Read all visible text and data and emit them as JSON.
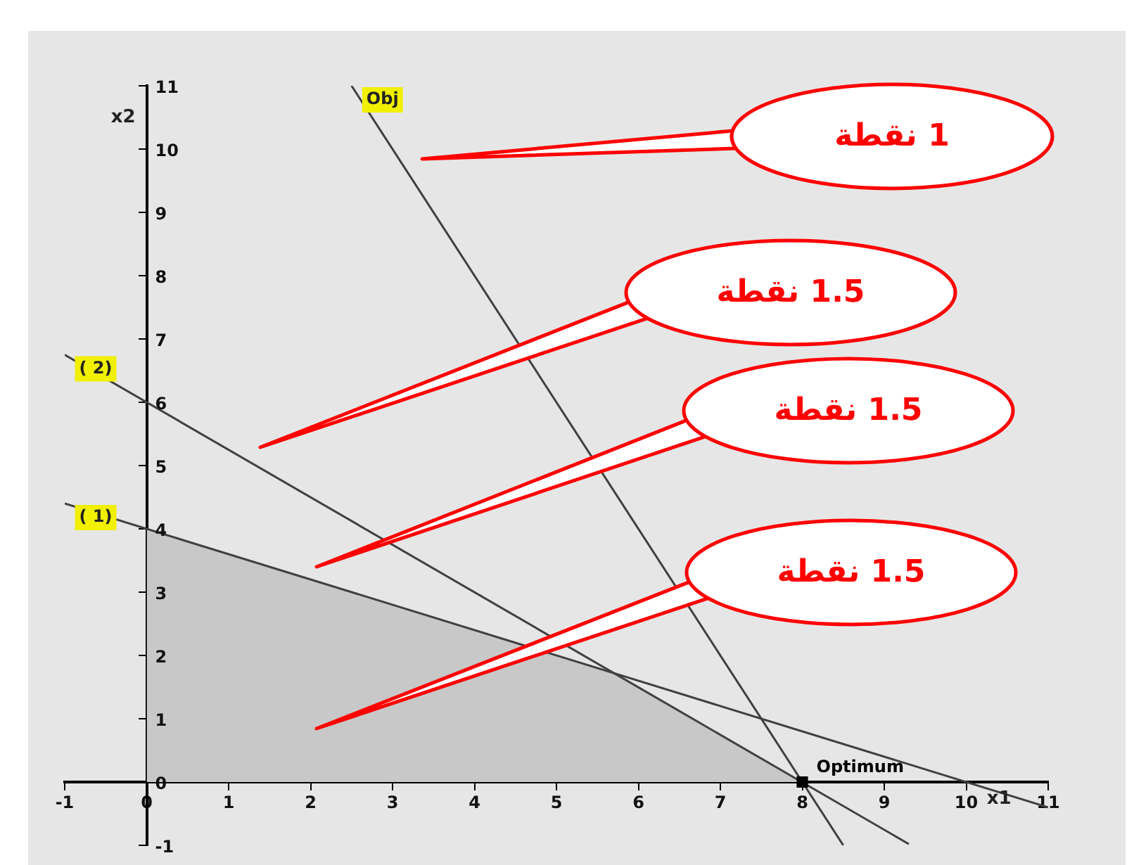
{
  "chart_data": {
    "type": "line",
    "xlabel": "x1",
    "ylabel": "x2",
    "xlim": [
      -1,
      11
    ],
    "ylim": [
      -1,
      11
    ],
    "xticks": [
      -1,
      0,
      1,
      2,
      3,
      4,
      5,
      6,
      7,
      8,
      9,
      10,
      11
    ],
    "yticks": [
      -1,
      0,
      1,
      2,
      3,
      4,
      5,
      6,
      7,
      8,
      9,
      10,
      11
    ],
    "grid": false,
    "legend": false,
    "series": [
      {
        "type": "area",
        "color": "#c8c8c8",
        "x": [
          0,
          5.71,
          8
        ],
        "values": [
          4,
          1.71,
          0
        ]
      },
      {
        "type": "line",
        "name": "( 2)",
        "color": "#404040",
        "x": [
          -1,
          9.3
        ],
        "values": [
          6.75,
          -0.98
        ]
      },
      {
        "type": "line",
        "name": "( 1)",
        "color": "#404040",
        "x": [
          -1,
          11
        ],
        "values": [
          4.4,
          -0.4
        ]
      },
      {
        "type": "line",
        "name": "Obj",
        "color": "#404040",
        "x": [
          2.5,
          8.5
        ],
        "values": [
          11,
          -1
        ]
      },
      {
        "type": "scatter",
        "name": "Optimum",
        "color": "#000000",
        "marker": "square",
        "x": [
          8
        ],
        "values": [
          0
        ]
      }
    ],
    "annotations": [
      "1 نقطة",
      "1.5 نقطة",
      "1.5 نقطة",
      "1.5 نقطة"
    ]
  }
}
